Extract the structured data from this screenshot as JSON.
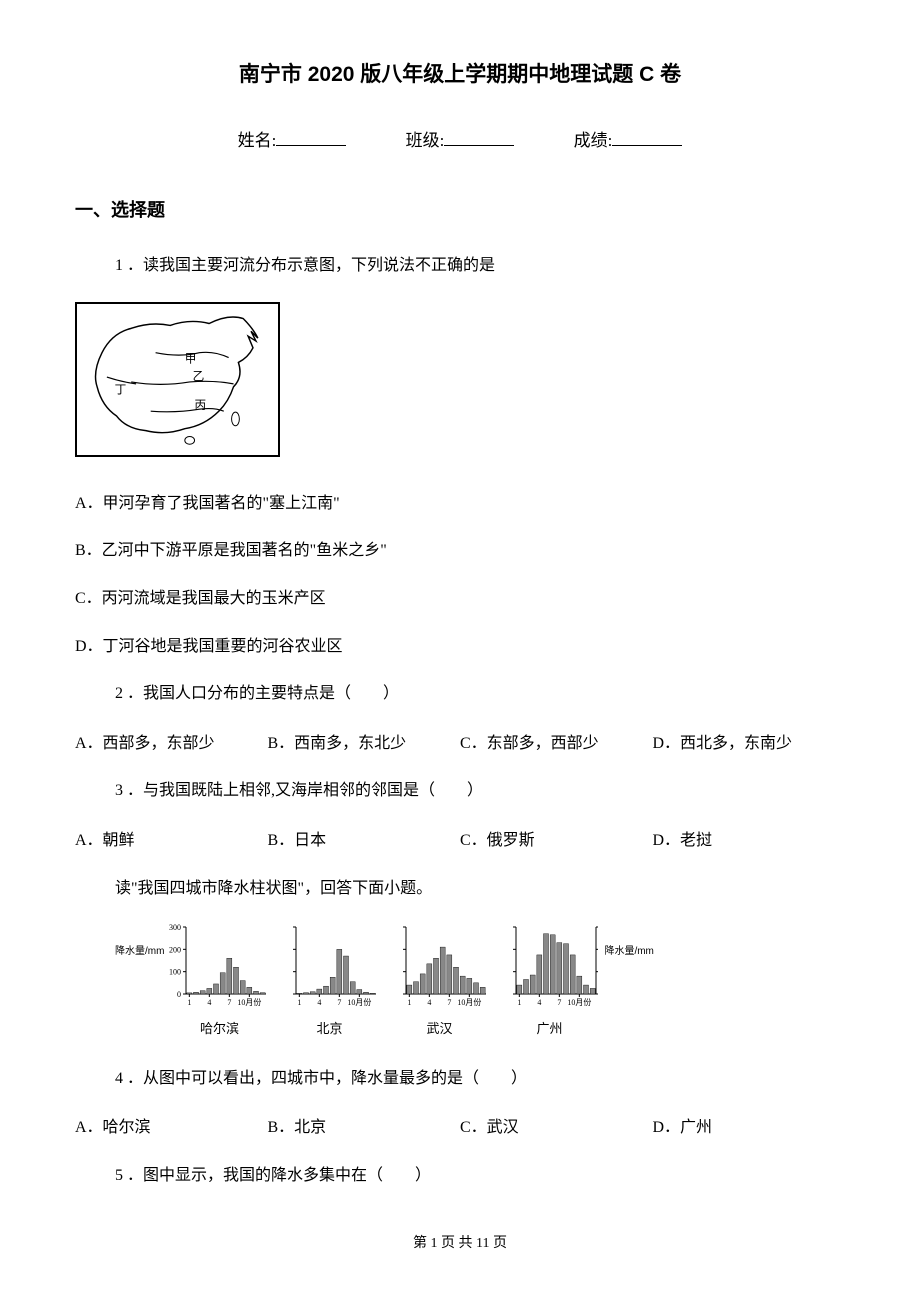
{
  "title": "南宁市 2020 版八年级上学期期中地理试题 C 卷",
  "info": {
    "name_label": "姓名:",
    "class_label": "班级:",
    "score_label": "成绩:"
  },
  "section_heading": "一、选择题",
  "q1": {
    "text": "1 ．读我国主要河流分布示意图，下列说法不正确的是",
    "map_labels": [
      "甲",
      "乙",
      "丙",
      "丁"
    ],
    "optA": "A．甲河孕育了我国著名的\"塞上江南\"",
    "optB": "B．乙河中下游平原是我国著名的\"鱼米之乡\"",
    "optC": "C．丙河流域是我国最大的玉米产区",
    "optD": "D．丁河谷地是我国重要的河谷农业区"
  },
  "q2": {
    "text": "2 ．我国人口分布的主要特点是（　　）",
    "optA": "A．西部多，东部少",
    "optB": "B．西南多，东北少",
    "optC": "C．东部多，西部少",
    "optD": "D．西北多，东南少"
  },
  "q3": {
    "text": "3 ．与我国既陆上相邻,又海岸相邻的邻国是（　　）",
    "optA": "A．朝鲜",
    "optB": "B．日本",
    "optC": "C．俄罗斯",
    "optD": "D．老挝"
  },
  "chart_intro": "读\"我国四城市降水柱状图\"，回答下面小题。",
  "charts": {
    "yaxis_label_left": "降水量/mm",
    "yaxis_label_right": "降水量/mm",
    "xaxis_ticks": [
      "1",
      "4",
      "7",
      "10月份"
    ],
    "y_ticks": [
      0,
      100,
      200,
      300
    ],
    "ymax": 300,
    "cities": [
      {
        "name": "哈尔滨",
        "values": [
          5,
          8,
          15,
          25,
          45,
          95,
          160,
          120,
          60,
          30,
          12,
          6
        ]
      },
      {
        "name": "北京",
        "values": [
          3,
          6,
          10,
          22,
          35,
          75,
          200,
          170,
          55,
          20,
          8,
          3
        ]
      },
      {
        "name": "武汉",
        "values": [
          40,
          55,
          90,
          135,
          160,
          210,
          175,
          120,
          80,
          70,
          50,
          30
        ]
      },
      {
        "name": "广州",
        "values": [
          40,
          65,
          85,
          175,
          270,
          265,
          230,
          225,
          175,
          80,
          40,
          25
        ]
      }
    ],
    "colors": {
      "bar_fill": "#888888",
      "bar_stroke": "#000000",
      "axis_color": "#000000",
      "background": "#ffffff"
    }
  },
  "q4": {
    "text": "4 ．从图中可以看出，四城市中，降水量最多的是（　　）",
    "optA": "A．哈尔滨",
    "optB": "B．北京",
    "optC": "C．武汉",
    "optD": "D．广州"
  },
  "q5": {
    "text": "5 ．图中显示，我国的降水多集中在（　　）"
  },
  "footer": "第 1 页 共 11 页"
}
